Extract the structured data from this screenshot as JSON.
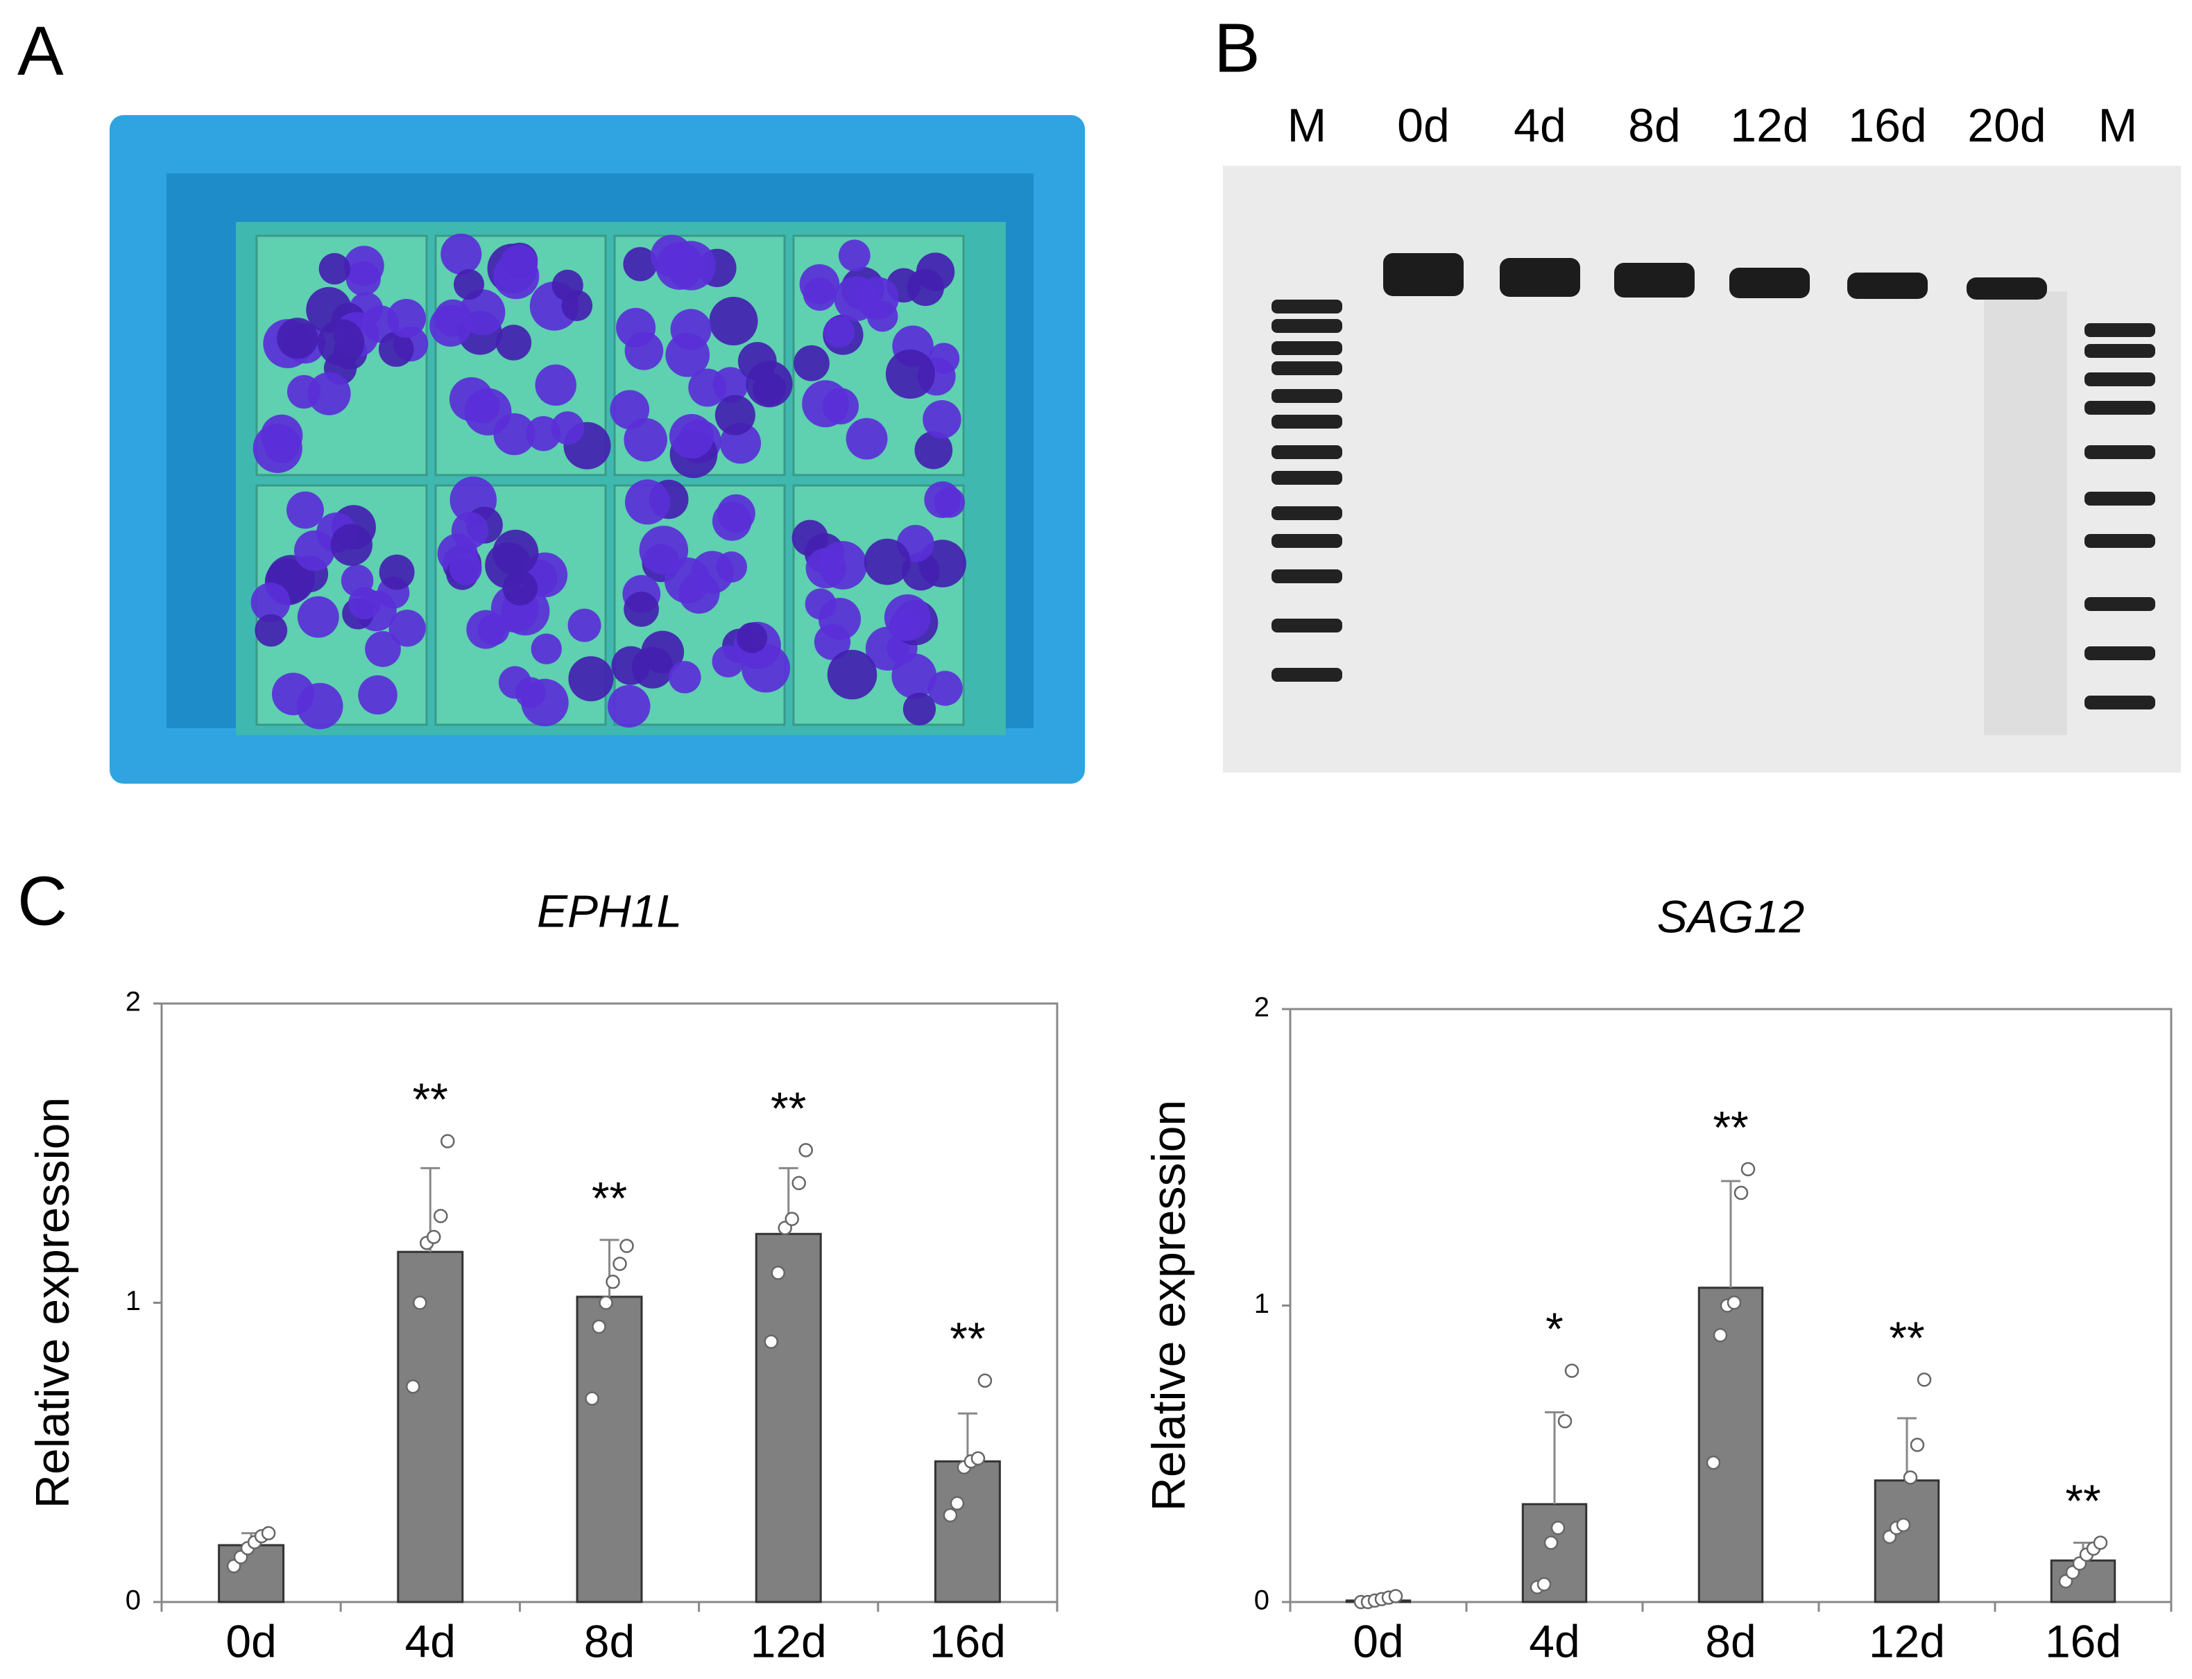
{
  "panels": [
    "A",
    "B",
    "C"
  ],
  "gel": {
    "lanes": [
      "M",
      "0d",
      "4d",
      "8d",
      "12d",
      "16d",
      "20d",
      "M"
    ]
  },
  "chart_data": [
    {
      "type": "bar",
      "title": "EPH1L",
      "ylabel": "Relative expression",
      "categories": [
        "0d",
        "4d",
        "8d",
        "12d",
        "16d"
      ],
      "values": [
        0.19,
        1.17,
        1.02,
        1.23,
        0.47
      ],
      "errors": [
        0.04,
        0.28,
        0.19,
        0.22,
        0.16
      ],
      "points": [
        [
          0.12,
          0.15,
          0.18,
          0.2,
          0.22,
          0.23
        ],
        [
          0.72,
          1.0,
          1.2,
          1.22,
          1.29,
          1.54
        ],
        [
          0.68,
          0.92,
          1.0,
          1.07,
          1.13,
          1.19
        ],
        [
          0.87,
          1.1,
          1.25,
          1.28,
          1.4,
          1.51
        ],
        [
          0.29,
          0.33,
          0.45,
          0.47,
          0.48,
          0.74
        ]
      ],
      "annotations": [
        null,
        "**",
        "**",
        "**",
        "**"
      ],
      "color": "#808080",
      "ylim": [
        0,
        2
      ],
      "yticks": [
        0,
        1,
        2
      ]
    },
    {
      "type": "bar",
      "title": "SAG12",
      "ylabel": "Relative expression",
      "categories": [
        "0d",
        "4d",
        "8d",
        "12d",
        "16d"
      ],
      "values": [
        0.005,
        0.33,
        1.06,
        0.41,
        0.14
      ],
      "errors": [
        0.01,
        0.31,
        0.36,
        0.21,
        0.06
      ],
      "points": [
        [
          0,
          0,
          0.005,
          0.01,
          0.015,
          0.02
        ],
        [
          0.05,
          0.06,
          0.2,
          0.25,
          0.61,
          0.78
        ],
        [
          0.47,
          0.9,
          1.0,
          1.01,
          1.38,
          1.46
        ],
        [
          0.22,
          0.25,
          0.26,
          0.42,
          0.53,
          0.75
        ],
        [
          0.07,
          0.1,
          0.13,
          0.16,
          0.18,
          0.2
        ]
      ],
      "annotations": [
        null,
        "*",
        "**",
        "**",
        "**"
      ],
      "color": "#808080",
      "ylim": [
        0,
        2
      ],
      "yticks": [
        0,
        1,
        2
      ]
    }
  ]
}
